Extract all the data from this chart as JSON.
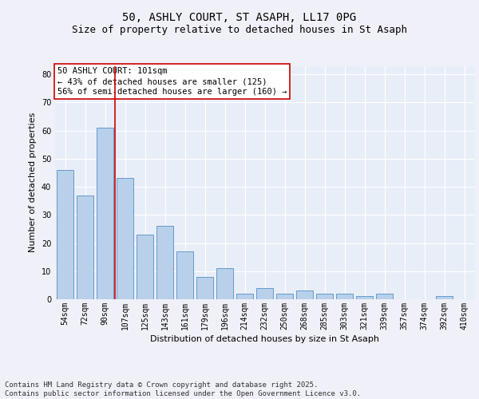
{
  "title1": "50, ASHLY COURT, ST ASAPH, LL17 0PG",
  "title2": "Size of property relative to detached houses in St Asaph",
  "xlabel": "Distribution of detached houses by size in St Asaph",
  "ylabel": "Number of detached properties",
  "categories": [
    "54sqm",
    "72sqm",
    "90sqm",
    "107sqm",
    "125sqm",
    "143sqm",
    "161sqm",
    "179sqm",
    "196sqm",
    "214sqm",
    "232sqm",
    "250sqm",
    "268sqm",
    "285sqm",
    "303sqm",
    "321sqm",
    "339sqm",
    "357sqm",
    "374sqm",
    "392sqm",
    "410sqm"
  ],
  "values": [
    46,
    37,
    61,
    43,
    23,
    26,
    17,
    8,
    11,
    2,
    4,
    2,
    3,
    2,
    2,
    1,
    2,
    0,
    0,
    1,
    0
  ],
  "bar_color": "#b8d0ea",
  "bar_edge_color": "#6699cc",
  "background_color": "#e8eef8",
  "fig_background": "#f0f0f8",
  "grid_color": "#ffffff",
  "vline_color": "#cc0000",
  "vline_x_index": 2.5,
  "annotation_text": "50 ASHLY COURT: 101sqm\n← 43% of detached houses are smaller (125)\n56% of semi-detached houses are larger (160) →",
  "annotation_box_facecolor": "#ffffff",
  "annotation_box_edgecolor": "#cc0000",
  "ylim": [
    0,
    83
  ],
  "yticks": [
    0,
    10,
    20,
    30,
    40,
    50,
    60,
    70,
    80
  ],
  "footer_text": "Contains HM Land Registry data © Crown copyright and database right 2025.\nContains public sector information licensed under the Open Government Licence v3.0.",
  "title_fontsize": 10,
  "subtitle_fontsize": 9,
  "axis_label_fontsize": 8,
  "tick_fontsize": 7,
  "annotation_fontsize": 7.5,
  "footer_fontsize": 6.5
}
